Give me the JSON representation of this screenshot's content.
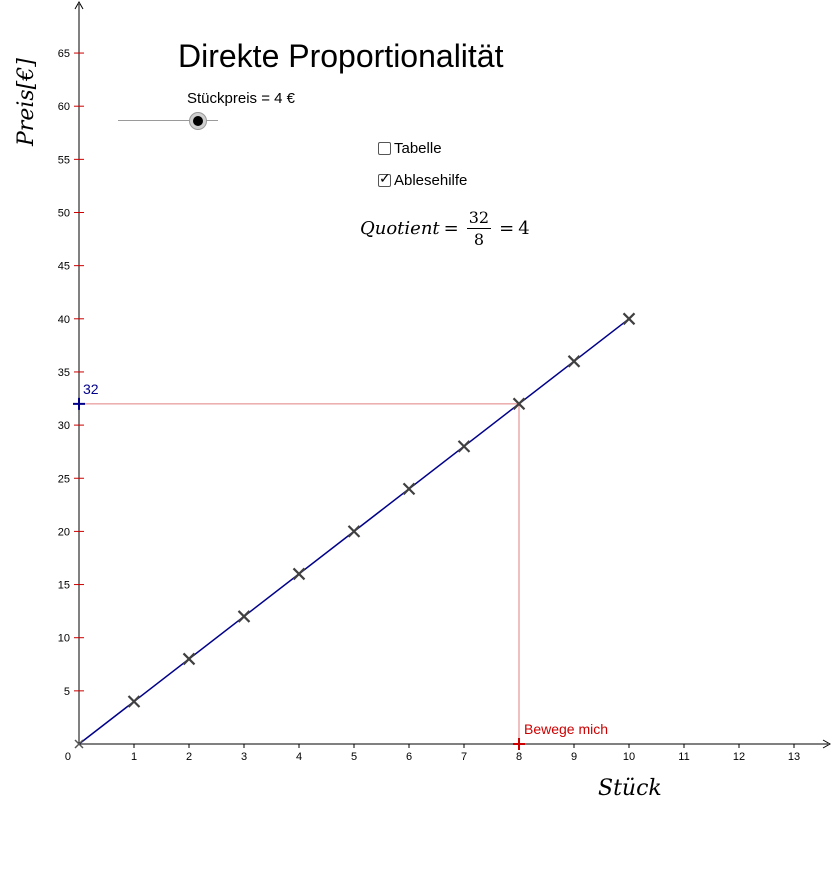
{
  "title": "Direkte Proportionalität",
  "slider": {
    "label": "Stückpreis = 4 €",
    "value": 4,
    "min": 0,
    "max": 5
  },
  "checkboxes": [
    {
      "label": "Tabelle",
      "checked": false
    },
    {
      "label": "Ablesehilfe",
      "checked": true
    }
  ],
  "quotient": {
    "lhs": "Quotient",
    "numerator": "32",
    "denominator": "8",
    "result": "4"
  },
  "axes": {
    "x_label": "Stück",
    "y_label": "Preis[€]"
  },
  "chart_data": {
    "type": "scatter",
    "title": "",
    "xlabel": "Stück",
    "ylabel": "Preis[€]",
    "xlim": [
      0,
      13.7
    ],
    "ylim": [
      0,
      70
    ],
    "xticks": [
      1,
      2,
      3,
      4,
      5,
      6,
      7,
      8,
      9,
      10,
      11,
      12,
      13
    ],
    "yticks": [
      5,
      10,
      15,
      20,
      25,
      30,
      35,
      40,
      45,
      50,
      55,
      60,
      65
    ],
    "origin_label": "0",
    "grid": false,
    "series": [
      {
        "marker": "cross",
        "x": [
          1,
          2,
          3,
          4,
          5,
          6,
          7,
          8,
          9,
          10
        ],
        "y": [
          4,
          8,
          12,
          16,
          20,
          24,
          28,
          32,
          36,
          40
        ]
      }
    ],
    "line": {
      "x": [
        0,
        10
      ],
      "y": [
        0,
        40
      ],
      "color": "#00008b"
    },
    "movable_point": {
      "x": 8,
      "y": 0,
      "label": "Bewege mich",
      "color": "#cc0000"
    },
    "reading_point": {
      "x": 0,
      "y": 32,
      "label": "32",
      "color": "#00008b"
    },
    "helper_line_color": "#e08080"
  }
}
